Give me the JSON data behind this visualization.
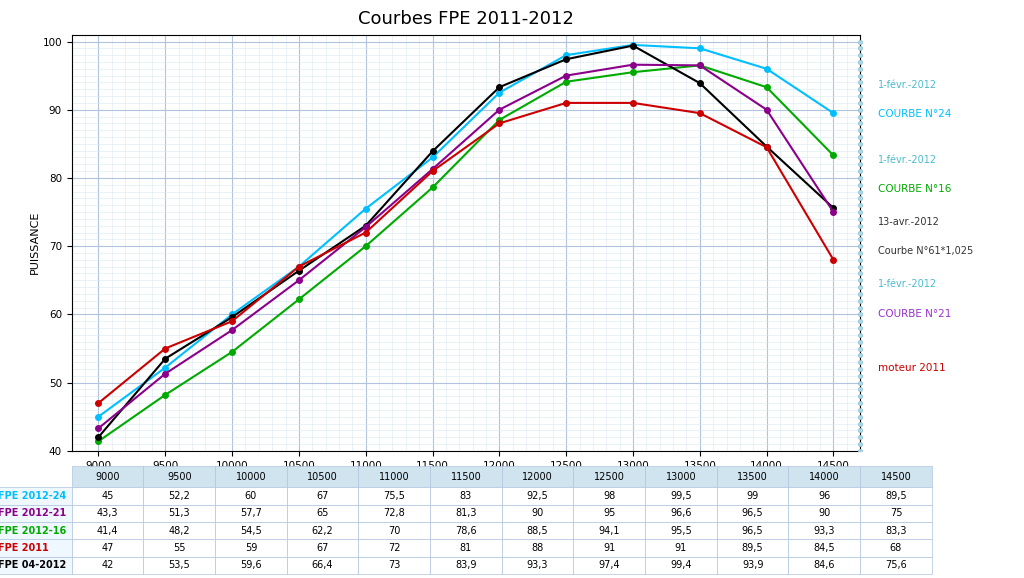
{
  "title": "Courbes FPE 2011-2012",
  "xlabel": "",
  "ylabel": "PUISSANCE",
  "x": [
    9000,
    9500,
    10000,
    10500,
    11000,
    11500,
    12000,
    12500,
    13000,
    13500,
    14000,
    14500
  ],
  "series": {
    "FPE 2012-24": {
      "y": [
        45,
        52.2,
        60,
        67,
        75.5,
        83,
        92.5,
        98,
        99.5,
        99,
        96,
        89.5
      ],
      "color": "#00BFFF",
      "marker": "o",
      "markersize": 4,
      "linewidth": 1.5,
      "linestyle": "-",
      "label_line1": "1-févr.-2012",
      "label_line2": "COURBE N°24",
      "label_color": "#00BFFF"
    },
    "FPE 2012-16": {
      "y": [
        41.4,
        48.2,
        54.5,
        62.2,
        70,
        78.6,
        88.5,
        94.1,
        95.5,
        96.5,
        93.3,
        83.3
      ],
      "color": "#00AA00",
      "marker": "o",
      "markersize": 4,
      "linewidth": 1.5,
      "linestyle": "-",
      "label_line1": "1-févr.-2012",
      "label_line2": "COURBE N°16",
      "label_color": "#00AA00"
    },
    "FPE 04-2012": {
      "y": [
        42,
        53.5,
        59.6,
        66.4,
        73,
        83.9,
        93.3,
        97.4,
        99.4,
        93.9,
        84.6,
        75.6
      ],
      "color": "#000000",
      "marker": "o",
      "markersize": 4,
      "linewidth": 1.5,
      "linestyle": "-",
      "label_line1": "13-avr.-2012",
      "label_line2": "Courbe N°61*1,025",
      "label_color": "#000000"
    },
    "FPE 2012-21": {
      "y": [
        43.3,
        51.3,
        57.7,
        65,
        72.8,
        81.3,
        90,
        95,
        96.6,
        96.5,
        90,
        75
      ],
      "color": "#8B008B",
      "marker": "o",
      "markersize": 4,
      "linewidth": 1.5,
      "linestyle": "-",
      "label_line1": "1-févr.-2012",
      "label_line2": "COURBE N°21",
      "label_color": "#9932CC"
    },
    "FPE 2011": {
      "y": [
        47,
        55,
        59,
        67,
        72,
        81,
        88,
        91,
        91,
        89.5,
        84.5,
        68
      ],
      "color": "#CC0000",
      "marker": "o",
      "markersize": 4,
      "linewidth": 1.5,
      "linestyle": "-",
      "label_line1": "moteur 2011",
      "label_line2": "",
      "label_color": "#CC0000"
    }
  },
  "ylim": [
    40,
    101
  ],
  "xlim": [
    8800,
    14700
  ],
  "yticks": [
    40,
    50,
    60,
    70,
    80,
    90,
    100
  ],
  "xticks": [
    9000,
    9500,
    10000,
    10500,
    11000,
    11500,
    12000,
    12500,
    13000,
    13500,
    14000,
    14500
  ],
  "bg_color": "#FFFFFF",
  "grid_color": "#B0C4DE",
  "minor_grid_color": "#D8E8F0",
  "right_panel_color": "#E8F4F8",
  "table_rows": [
    [
      "FPE 2012-24",
      "45",
      "52,2",
      "60",
      "67",
      "75,5",
      "83",
      "92,5",
      "98",
      "99,5",
      "99",
      "96",
      "89,5"
    ],
    [
      "FPE 2012-21",
      "43,3",
      "51,3",
      "57,7",
      "65",
      "72,8",
      "81,3",
      "90",
      "95",
      "96,6",
      "96,5",
      "90",
      "75"
    ],
    [
      "FPE 2012-16",
      "41,4",
      "48,2",
      "54,5",
      "62,2",
      "70",
      "78,6",
      "88,5",
      "94,1",
      "95,5",
      "96,5",
      "93,3",
      "83,3"
    ],
    [
      "FPE 2011",
      "47",
      "55",
      "59",
      "67",
      "72",
      "81",
      "88",
      "91",
      "91",
      "89,5",
      "84,5",
      "68"
    ],
    [
      "FPE 04-2012",
      "42",
      "53,5",
      "59,6",
      "66,4",
      "73",
      "83,9",
      "93,3",
      "97,4",
      "99,4",
      "93,9",
      "84,6",
      "75,6"
    ]
  ],
  "table_row_colors": [
    "#00BFFF",
    "#8B008B",
    "#00AA00",
    "#CC0000",
    "#000000"
  ]
}
